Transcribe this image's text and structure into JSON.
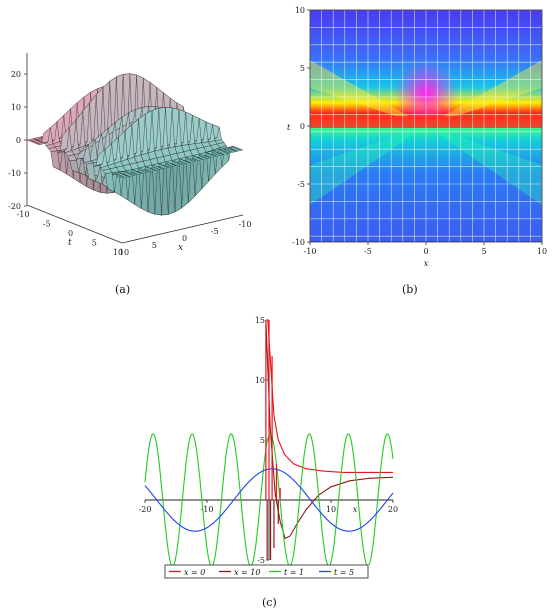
{
  "captions": {
    "a": "(a)",
    "b": "(b)",
    "c": "(c)"
  },
  "chart_data": [
    {
      "id": "a",
      "type": "surface3d",
      "z_ticks": [
        "20",
        "10",
        "0",
        "-10",
        "-20"
      ],
      "t_ticks": [
        "-10",
        "-5",
        "0",
        "5",
        "10"
      ],
      "x_ticks": [
        "10",
        "5",
        "0",
        "-5",
        "-10"
      ],
      "t_label": "t",
      "x_label": "x",
      "zlim": [
        -25,
        22
      ]
    },
    {
      "id": "b",
      "type": "heatmap",
      "x_ticks": [
        "-10",
        "-5",
        "0",
        "5",
        "10"
      ],
      "y_ticks": [
        "10",
        "5",
        "0",
        "-5",
        "-10"
      ],
      "xlabel": "x",
      "ylabel": "t",
      "xlim": [
        -10,
        10
      ],
      "ylim": [
        -10,
        10
      ]
    },
    {
      "id": "c",
      "type": "line",
      "xlim": [
        -20,
        20
      ],
      "ylim": [
        -5,
        15
      ],
      "x_ticks": [
        "-20",
        "-10",
        "10",
        "20"
      ],
      "y_ticks": [
        "15",
        "10",
        "5",
        "-5"
      ],
      "x_axis_label": "x",
      "legend_position": "bottom",
      "series": [
        {
          "name": "x = 0",
          "color": "#e8141e",
          "x": [
            -0.2,
            0.3,
            0.8,
            1.5,
            2.5,
            4,
            6,
            9,
            12,
            16,
            20
          ],
          "y": [
            15,
            11,
            7,
            5,
            3.8,
            3.0,
            2.6,
            2.4,
            2.3,
            2.3,
            2.3
          ]
        },
        {
          "name": "x = 10",
          "color": "#8b1a1a",
          "x": [
            -0.5,
            0.2,
            1.0,
            1.8,
            2.6,
            3.4,
            4.5,
            6,
            8,
            10,
            13,
            16,
            20
          ],
          "y": [
            15,
            6,
            0.5,
            -1.8,
            -3.2,
            -3.0,
            -2.0,
            -0.8,
            0.4,
            1.1,
            1.6,
            1.8,
            1.9
          ]
        },
        {
          "name": "t = 1",
          "color": "#22cc22",
          "amplitude": 5.5,
          "period": 6.3,
          "phase": 0.2
        },
        {
          "name": "t = 5",
          "color": "#2244ee",
          "amplitude": 2.6,
          "period": 24.8,
          "phase": 0.5
        }
      ]
    }
  ]
}
